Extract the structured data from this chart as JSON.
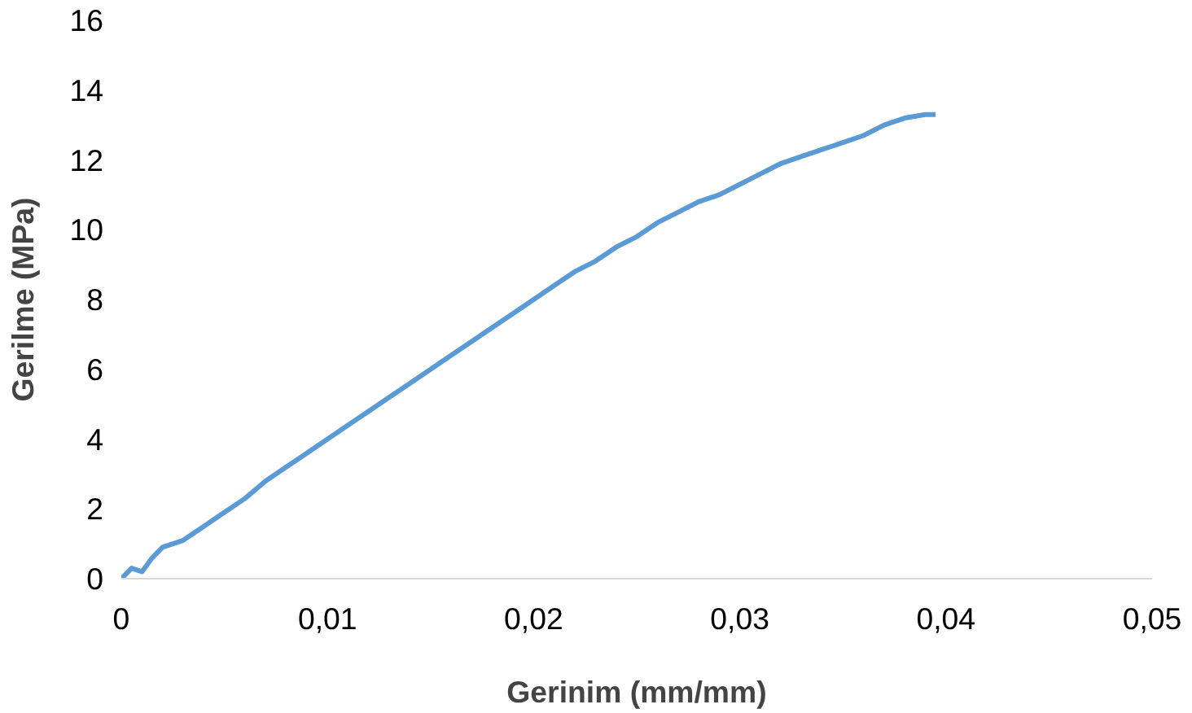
{
  "chart_data": {
    "type": "line",
    "xlabel": "Gerinim (mm/mm)",
    "ylabel": "Gerilme (MPa)",
    "x": [
      0,
      0.0005,
      0.001,
      0.0015,
      0.002,
      0.003,
      0.004,
      0.005,
      0.006,
      0.007,
      0.008,
      0.009,
      0.01,
      0.011,
      0.012,
      0.013,
      0.014,
      0.015,
      0.016,
      0.017,
      0.018,
      0.019,
      0.02,
      0.021,
      0.022,
      0.023,
      0.024,
      0.025,
      0.026,
      0.027,
      0.028,
      0.029,
      0.03,
      0.031,
      0.032,
      0.033,
      0.034,
      0.035,
      0.036,
      0.037,
      0.038,
      0.039,
      0.0395
    ],
    "series": [
      {
        "color": "#5b9bd5",
        "values": [
          0,
          0.3,
          0.2,
          0.6,
          0.9,
          1.1,
          1.5,
          1.9,
          2.3,
          2.8,
          3.2,
          3.6,
          4.0,
          4.4,
          4.8,
          5.2,
          5.6,
          6.0,
          6.4,
          6.8,
          7.2,
          7.6,
          8.0,
          8.4,
          8.8,
          9.1,
          9.5,
          9.8,
          10.2,
          10.5,
          10.8,
          11.0,
          11.3,
          11.6,
          11.9,
          12.1,
          12.3,
          12.5,
          12.7,
          13.0,
          13.2,
          13.3,
          13.3
        ]
      }
    ],
    "xlim": [
      0,
      0.05
    ],
    "ylim": [
      0,
      16
    ],
    "xticks": [
      0,
      {
        "value": 0.01,
        "label": "0,01"
      },
      {
        "value": 0.02,
        "label": "0,02"
      },
      {
        "value": 0.03,
        "label": "0,03"
      },
      {
        "value": 0.04,
        "label": "0,04"
      },
      {
        "value": 0.05,
        "label": "0,05"
      }
    ],
    "yticks": [
      0,
      2,
      4,
      6,
      8,
      10,
      12,
      14,
      16
    ],
    "grid": false,
    "marker": "none",
    "line_style": "solid"
  }
}
